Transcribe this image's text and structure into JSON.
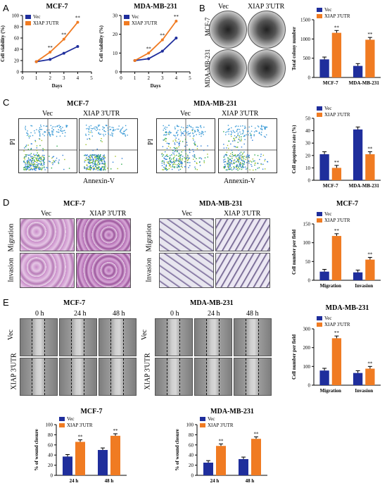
{
  "panels": {
    "A": "A",
    "B": "B",
    "C": "C",
    "D": "D",
    "E": "E"
  },
  "common": {
    "vec": "Vec",
    "xiap": "XIAP 3'UTR",
    "mcf7": "MCF-7",
    "mda": "MDA-MB-231",
    "pi": "PI",
    "annexin": "Annexin-V",
    "migration": "Migration",
    "invasion": "Invasion",
    "t0": "0 h",
    "t24": "24 h",
    "t48": "48 h",
    "sig": "**"
  },
  "colors": {
    "vec": "#1f2e9c",
    "xiap": "#f07b22"
  },
  "chart_data": [
    {
      "id": "A-left",
      "type": "line",
      "title": "MCF-7",
      "xlabel": "Days",
      "ylabel": "Cell viability (%)",
      "x": [
        1,
        2,
        3,
        4
      ],
      "xlim": [
        0,
        5
      ],
      "ylim": [
        0,
        100
      ],
      "xticks": [
        "0",
        "1",
        "2",
        "3",
        "4",
        "5"
      ],
      "yticks": [
        "0",
        "20",
        "40",
        "60",
        "80",
        "100"
      ],
      "series": [
        {
          "name": "Vec",
          "values": [
            18,
            22,
            33,
            45
          ]
        },
        {
          "name": "XIAP 3'UTR",
          "values": [
            18,
            35,
            58,
            88
          ]
        }
      ]
    },
    {
      "id": "A-right",
      "type": "line",
      "title": "MDA-MB-231",
      "xlabel": "Days",
      "ylabel": "Cell viability (%)",
      "x": [
        1,
        2,
        3,
        4
      ],
      "xlim": [
        0,
        5
      ],
      "ylim": [
        0,
        30
      ],
      "xticks": [
        "0",
        "1",
        "2",
        "3",
        "4",
        "5"
      ],
      "yticks": [
        "0",
        "10",
        "20",
        "30"
      ],
      "series": [
        {
          "name": "Vec",
          "values": [
            6,
            7,
            11,
            18
          ]
        },
        {
          "name": "XIAP 3'UTR",
          "values": [
            6,
            10,
            17,
            27
          ]
        }
      ]
    },
    {
      "id": "B",
      "type": "bar",
      "ylabel": "Total colony number",
      "categories": [
        "MCF-7",
        "MDA-MB-231"
      ],
      "ylim": [
        0,
        1500
      ],
      "yticks": [
        "0",
        "500",
        "1000",
        "1500"
      ],
      "series": [
        {
          "name": "Vec",
          "values": [
            470,
            300
          ]
        },
        {
          "name": "XIAP 3'UTR",
          "values": [
            1160,
            980
          ]
        }
      ]
    },
    {
      "id": "C",
      "type": "bar",
      "ylabel": "Cell apoptosis rate (%)",
      "categories": [
        "MCF-7",
        "MDA-MB-231"
      ],
      "ylim": [
        0,
        50
      ],
      "yticks": [
        "0",
        "10",
        "20",
        "30",
        "40",
        "50"
      ],
      "series": [
        {
          "name": "Vec",
          "values": [
            21,
            41
          ]
        },
        {
          "name": "XIAP 3'UTR",
          "values": [
            10,
            21
          ]
        }
      ]
    },
    {
      "id": "D",
      "type": "bar",
      "title": "MCF-7",
      "ylabel": "Cell number per field",
      "categories": [
        "Migration",
        "Invasion"
      ],
      "ylim": [
        0,
        150
      ],
      "yticks": [
        "0",
        "50",
        "100",
        "150"
      ],
      "series": [
        {
          "name": "Vec",
          "values": [
            23,
            21
          ]
        },
        {
          "name": "XIAP 3'UTR",
          "values": [
            118,
            55
          ]
        }
      ]
    },
    {
      "id": "E-top",
      "type": "bar",
      "title": "MDA-MB-231",
      "ylabel": "Cell number per field",
      "categories": [
        "Migration",
        "Invasion"
      ],
      "ylim": [
        0,
        300
      ],
      "yticks": [
        "0",
        "100",
        "200",
        "300"
      ],
      "series": [
        {
          "name": "Vec",
          "values": [
            78,
            65
          ]
        },
        {
          "name": "XIAP 3'UTR",
          "values": [
            250,
            88
          ]
        }
      ]
    },
    {
      "id": "E-left",
      "type": "bar",
      "title": "MCF-7",
      "ylabel": "% of wound closure",
      "categories": [
        "24 h",
        "48 h"
      ],
      "ylim": [
        0,
        100
      ],
      "yticks": [
        "0",
        "20",
        "40",
        "60",
        "80",
        "100"
      ],
      "series": [
        {
          "name": "Vec",
          "values": [
            37,
            50
          ]
        },
        {
          "name": "XIAP 3'UTR",
          "values": [
            66,
            78
          ]
        }
      ]
    },
    {
      "id": "E-right",
      "type": "bar",
      "title": "MDA-MB-231",
      "ylabel": "% of wound closure",
      "categories": [
        "24 h",
        "48 h"
      ],
      "ylim": [
        0,
        100
      ],
      "yticks": [
        "0",
        "20",
        "40",
        "60",
        "80",
        "100"
      ],
      "series": [
        {
          "name": "Vec",
          "values": [
            25,
            32
          ]
        },
        {
          "name": "XIAP 3'UTR",
          "values": [
            58,
            72
          ]
        }
      ]
    }
  ]
}
